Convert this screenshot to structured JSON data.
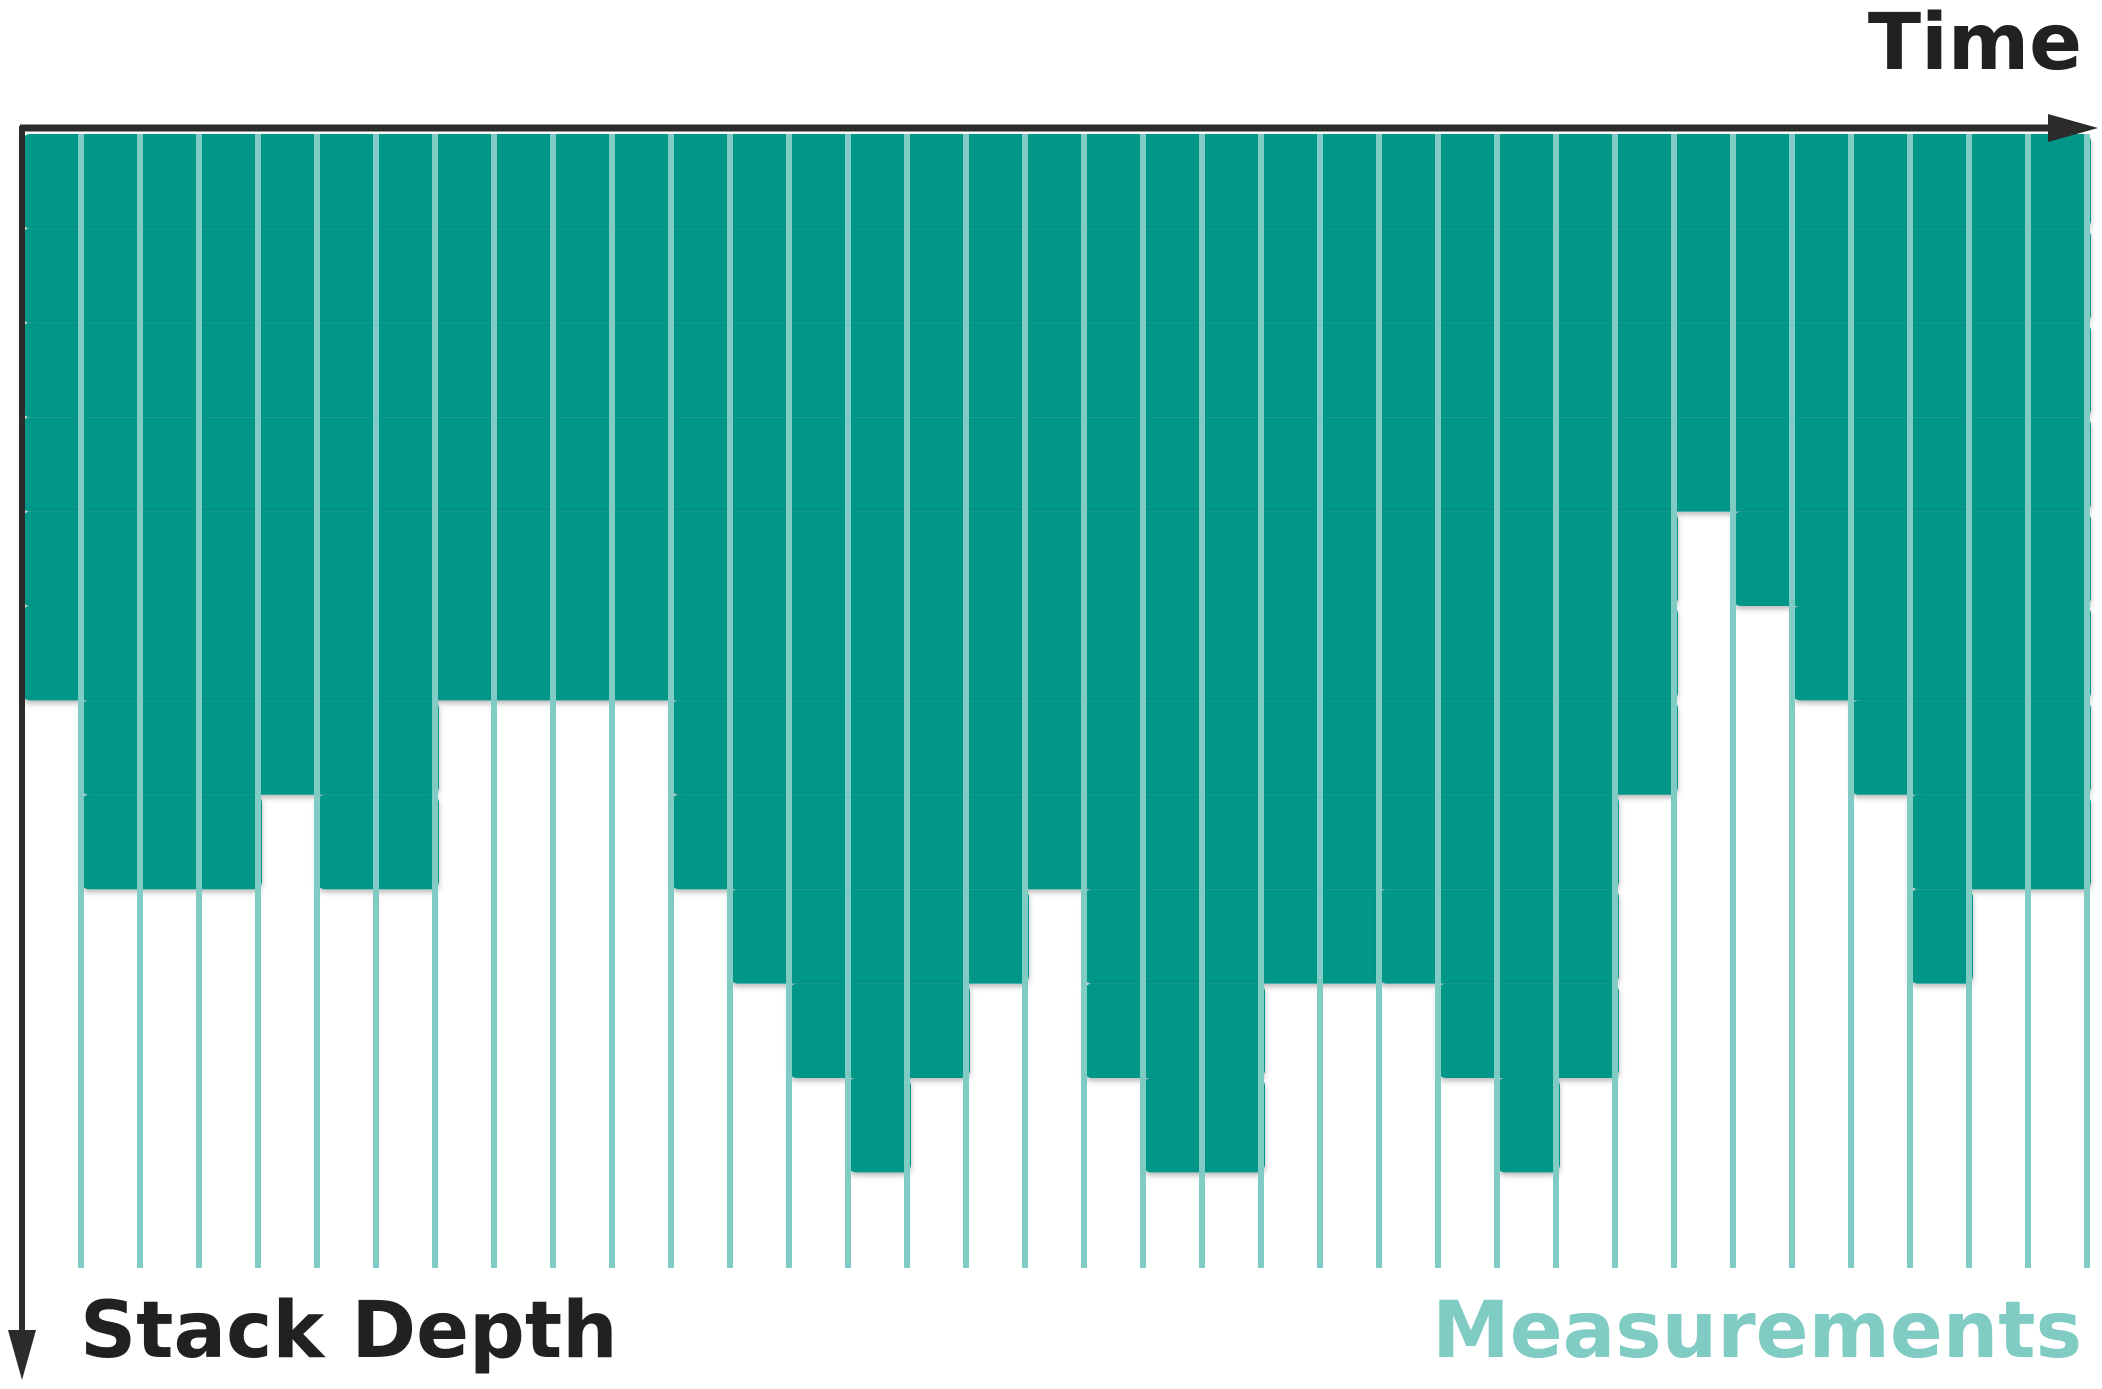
{
  "labels": {
    "time": "Time",
    "stack_depth": "Stack Depth",
    "measurements": "Measurements"
  },
  "colors": {
    "frame": "#009688",
    "sample_line": "#80cbc4",
    "axis": "#2b2b2b",
    "text": "#212121",
    "measurements_text": "#80cbc4"
  },
  "frames": [
    {
      "level": 1,
      "start": 0,
      "end": 35
    },
    {
      "level": 2,
      "start": 0,
      "end": 35
    },
    {
      "level": 3,
      "start": 0,
      "end": 35
    },
    {
      "level": 4,
      "start": 0,
      "end": 35
    },
    {
      "level": 5,
      "start": 0,
      "end": 28
    },
    {
      "level": 5,
      "start": 29,
      "end": 35
    },
    {
      "level": 6,
      "start": 0,
      "end": 28
    },
    {
      "level": 6,
      "start": 30,
      "end": 35
    },
    {
      "level": 7,
      "start": 1,
      "end": 7
    },
    {
      "level": 7,
      "start": 11,
      "end": 28
    },
    {
      "level": 7,
      "start": 31,
      "end": 35
    },
    {
      "level": 8,
      "start": 1,
      "end": 4
    },
    {
      "level": 8,
      "start": 5,
      "end": 7
    },
    {
      "level": 8,
      "start": 11,
      "end": 27
    },
    {
      "level": 8,
      "start": 32,
      "end": 35
    },
    {
      "level": 9,
      "start": 12,
      "end": 17
    },
    {
      "level": 9,
      "start": 18,
      "end": 23
    },
    {
      "level": 9,
      "start": 23,
      "end": 27
    },
    {
      "level": 9,
      "start": 32,
      "end": 33
    },
    {
      "level": 10,
      "start": 13,
      "end": 16
    },
    {
      "level": 10,
      "start": 18,
      "end": 21
    },
    {
      "level": 10,
      "start": 24,
      "end": 27
    },
    {
      "level": 11,
      "start": 14,
      "end": 15
    },
    {
      "level": 11,
      "start": 19,
      "end": 21
    },
    {
      "level": 11,
      "start": 25,
      "end": 26
    }
  ],
  "sample_count": 35
}
